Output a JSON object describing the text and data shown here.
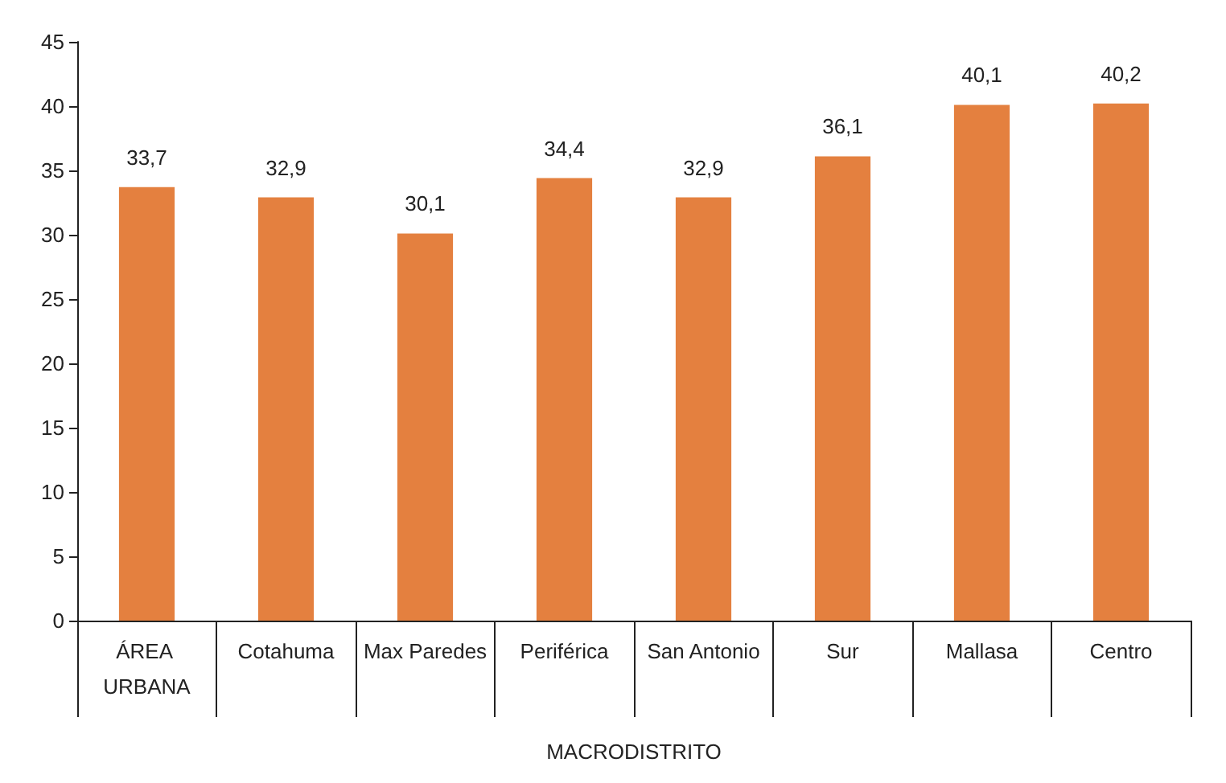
{
  "chart_data": {
    "type": "bar",
    "xlabel": "MACRODISTRITO",
    "categories": [
      "ÁREA URBANA",
      "Cotahuma",
      "Max Paredes",
      "Periférica",
      "San Antonio",
      "Sur",
      "Mallasa",
      "Centro"
    ],
    "series": [
      {
        "color": "#e4803f",
        "values": [
          33.7,
          32.9,
          30.1,
          34.4,
          32.9,
          36.1,
          40.1,
          40.2
        ],
        "value_labels": [
          "33,7",
          "32,9",
          "30,1",
          "34,4",
          "32,9",
          "36,1",
          "40,1",
          "40,2"
        ]
      }
    ],
    "ylim": [
      0,
      45
    ],
    "yticks": [
      0,
      5,
      10,
      15,
      20,
      25,
      30,
      35,
      40,
      45
    ],
    "grid": false
  }
}
